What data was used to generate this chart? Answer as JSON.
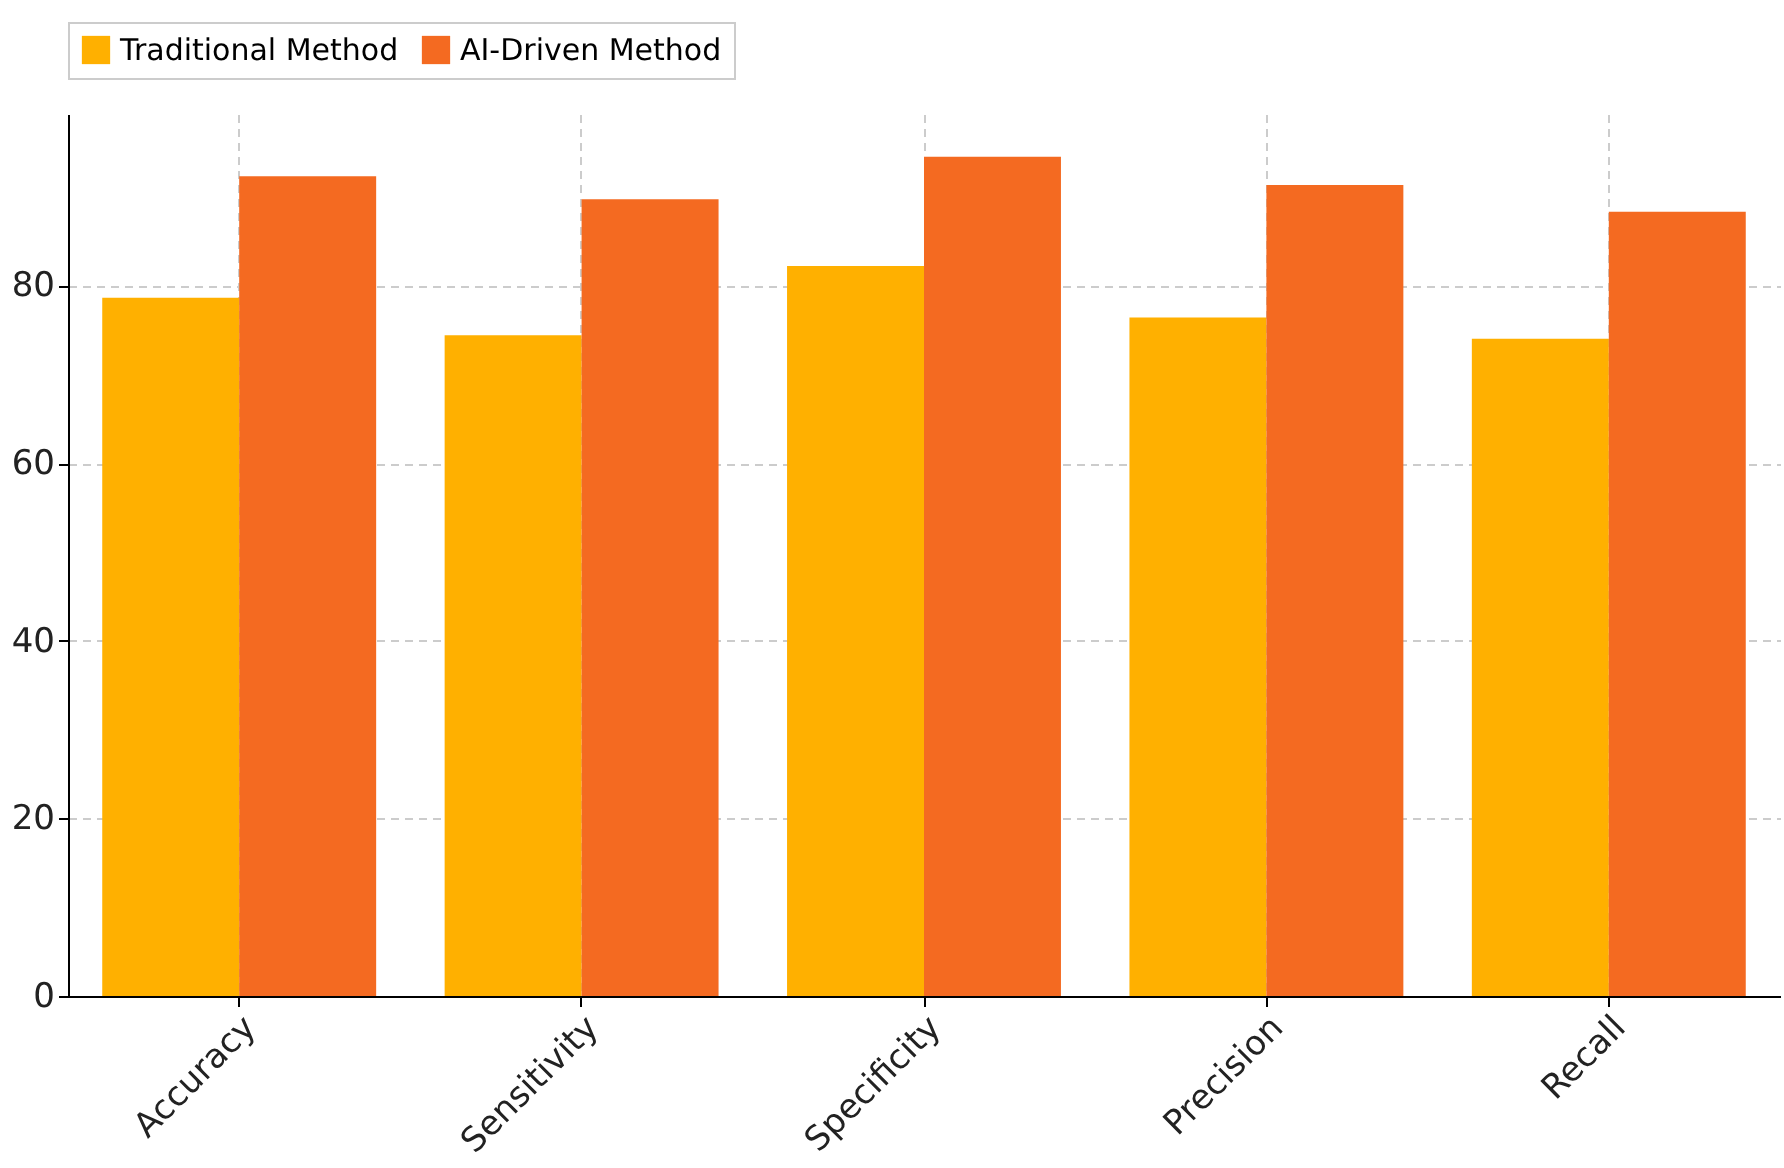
{
  "chart_data": {
    "type": "bar",
    "categories": [
      "Accuracy",
      "Sensitivity",
      "Specificity",
      "Precision",
      "Recall"
    ],
    "series": [
      {
        "name": "Traditional Method",
        "color": "#ffb000",
        "values": [
          78.6,
          74.4,
          82.2,
          76.4,
          74.0
        ]
      },
      {
        "name": "AI-Driven Method",
        "color": "#f46a21",
        "values": [
          92.3,
          89.7,
          94.5,
          91.3,
          88.3
        ]
      }
    ],
    "ylim": [
      0,
      99.3
    ],
    "yticks": [
      0,
      20,
      40,
      60,
      80
    ],
    "grid": true,
    "legend": "top"
  }
}
